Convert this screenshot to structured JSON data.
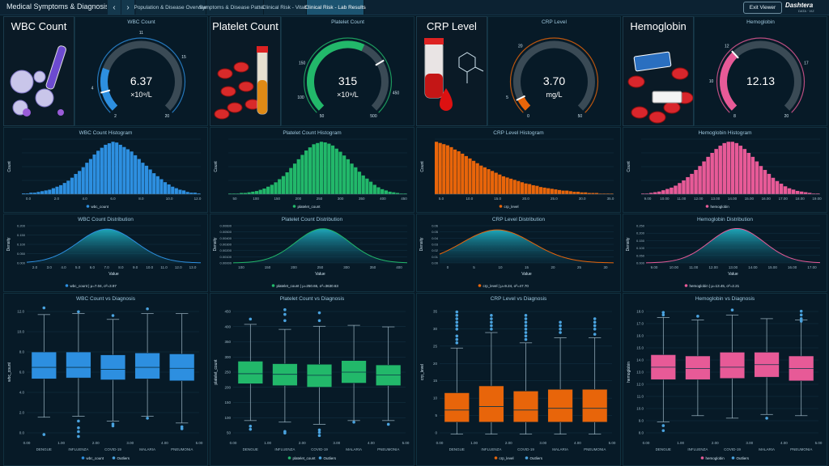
{
  "app": {
    "title": "Medical Symptoms & Diagnosis An...",
    "exit_label": "Exit Viewer",
    "logo": "Dashtera",
    "logo_sub": "DATA · VIZ"
  },
  "nav": {
    "back": "‹",
    "forward": "›"
  },
  "tabs": [
    {
      "label": "Population & Disease Overview"
    },
    {
      "label": "Symptoms & Disease Patterns"
    },
    {
      "label": "Clinical Risk - Vitals"
    },
    {
      "label": "Clinical Risk - Lab Results"
    }
  ],
  "colors": {
    "wbc": "#2d8fe0",
    "platelet": "#22b86a",
    "crp": "#e8650a",
    "hemoglobin": "#e75a97"
  },
  "metrics": [
    {
      "key": "wbc",
      "title": "WBC Count",
      "gauge_title": "WBC Count",
      "value": "6.37",
      "unit": "×10⁹/L",
      "min": "2",
      "max": "20",
      "ticks": [
        "4",
        "11",
        "15"
      ],
      "fraction": 0.24,
      "marker": 0.11,
      "hist_title": "WBC Count Histogram",
      "hist_legend": "wbc_count",
      "hist_ticks": [
        "0.0",
        "2.0",
        "4.0",
        "6.0",
        "8.0",
        "10.0",
        "12.0"
      ],
      "dist_title": "WBC Count Distribution",
      "dist_legend": "wbc_count | μ=7.04, σ²=3.97",
      "dist_ticks": [
        "2.0",
        "3.0",
        "4.0",
        "5.0",
        "6.0",
        "7.0",
        "8.0",
        "9.0",
        "10.0",
        "11.0",
        "12.0",
        "13.0"
      ],
      "dist_y": [
        "0.200",
        "0.150",
        "0.100",
        "0.050",
        "0.000"
      ],
      "box_title": "WBC Count vs Diagnosis",
      "box_ylabel": "wbc_count",
      "box_legend": "wbc_count",
      "box_y": [
        "12.0",
        "10.0",
        "8.0",
        "6.0",
        "4.0",
        "2.0",
        "0.0"
      ]
    },
    {
      "key": "platelet",
      "title": "Platelet Count",
      "gauge_title": "Platelet Count",
      "value": "315",
      "unit": "×10⁹/L",
      "min": "50",
      "max": "500",
      "ticks": [
        "100",
        "150",
        "450"
      ],
      "fraction": 0.59,
      "marker": 0.72,
      "hist_title": "Platelet Count Histogram",
      "hist_legend": "platelet_count",
      "hist_ticks": [
        "50",
        "100",
        "150",
        "200",
        "250",
        "300",
        "350",
        "400",
        "450"
      ],
      "dist_title": "Platelet Count Distribution",
      "dist_legend": "platelet_count | μ=250.65, σ²=3630.63",
      "dist_ticks": [
        "100",
        "150",
        "200",
        "250",
        "300",
        "350",
        "400"
      ],
      "dist_y": [
        "0.00600",
        "0.00500",
        "0.00400",
        "0.00300",
        "0.00200",
        "0.00100",
        "0.00000"
      ],
      "box_title": "Platelet Count vs Diagnosis",
      "box_ylabel": "platelet_count",
      "box_legend": "platelet_count",
      "box_y": [
        "450",
        "400",
        "350",
        "300",
        "250",
        "200",
        "150",
        "100",
        "50"
      ]
    },
    {
      "key": "crp",
      "title": "CRP Level",
      "gauge_title": "CRP Level",
      "value": "3.70",
      "unit": "mg/L",
      "min": "0",
      "max": "50",
      "ticks": [
        "5",
        "20"
      ],
      "fraction": 0.07,
      "marker": 0.07,
      "hist_title": "CRP Level Histogram",
      "hist_legend": "crp_level",
      "hist_ticks": [
        "5.0",
        "10.0",
        "15.0",
        "20.0",
        "25.0",
        "30.0",
        "35.0"
      ],
      "dist_title": "CRP Level Distribution",
      "dist_legend": "crp_level | μ=9.24, σ²=47.70",
      "dist_ticks": [
        "0",
        "5",
        "10",
        "15",
        "20",
        "25",
        "30"
      ],
      "dist_y": [
        "0.06",
        "0.05",
        "0.04",
        "0.03",
        "0.02",
        "0.01",
        "0.00"
      ],
      "box_title": "CRP Level vs Diagnosis",
      "box_ylabel": "crp_level",
      "box_legend": "crp_level",
      "box_y": [
        "35",
        "30",
        "25",
        "20",
        "15",
        "10",
        "5",
        "0"
      ]
    },
    {
      "key": "hemoglobin",
      "title": "Hemoglobin",
      "gauge_title": "Hemoglobin",
      "value": "12.13",
      "unit": "",
      "min": "8",
      "max": "20",
      "ticks": [
        "10",
        "12",
        "17"
      ],
      "fraction": 0.34,
      "marker": 0.34,
      "hist_title": "Hemoglobin Histogram",
      "hist_legend": "hemoglobin",
      "hist_ticks": [
        "9.00",
        "10.00",
        "11.00",
        "12.00",
        "13.00",
        "14.00",
        "15.00",
        "16.00",
        "17.00",
        "18.00",
        "19.00"
      ],
      "dist_title": "Hemoglobin Distribution",
      "dist_legend": "hemoglobin | μ=13.45, σ²=2.21",
      "dist_ticks": [
        "9.00",
        "10.00",
        "11.00",
        "12.00",
        "13.00",
        "14.00",
        "15.00",
        "16.00",
        "17.00"
      ],
      "dist_y": [
        "0.250",
        "0.200",
        "0.150",
        "0.100",
        "0.050",
        "0.000"
      ],
      "box_title": "Hemoglobin vs Diagnosis",
      "box_ylabel": "hemoglobin",
      "box_legend": "hemoglobin",
      "box_y": [
        "18.0",
        "17.0",
        "16.0",
        "15.0",
        "14.0",
        "13.0",
        "12.0",
        "11.0",
        "10.0",
        "9.0",
        "8.0"
      ]
    }
  ],
  "diagnoses": [
    "DENGUE",
    "INFLUENZA",
    "COVID-19",
    "MALARIA",
    "PNEUMONIA"
  ],
  "box_x_ticks": [
    "0.00",
    "1.00",
    "2.00",
    "3.00",
    "4.00",
    "5.00"
  ],
  "labels": {
    "count": "Count",
    "density": "Density",
    "value": "Value",
    "outliers": "Outliers"
  },
  "chart_data": [
    {
      "type": "bar",
      "title": "WBC Count Histogram",
      "xlabel": "",
      "ylabel": "Count",
      "x_range": [
        0,
        13
      ],
      "values": [
        1,
        1,
        2,
        2,
        3,
        4,
        5,
        6,
        8,
        10,
        12,
        15,
        18,
        22,
        27,
        31,
        36,
        42,
        47,
        53,
        58,
        62,
        66,
        68,
        70,
        69,
        66,
        63,
        60,
        57,
        52,
        47,
        42,
        38,
        33,
        28,
        24,
        20,
        16,
        13,
        10,
        8,
        6,
        5,
        3,
        2,
        2,
        1
      ]
    },
    {
      "type": "bar",
      "title": "Platelet Count Histogram",
      "xlabel": "",
      "ylabel": "Count",
      "x_range": [
        50,
        460
      ],
      "values": [
        1,
        1,
        1,
        2,
        2,
        3,
        4,
        5,
        7,
        9,
        12,
        15,
        19,
        24,
        29,
        35,
        42,
        49,
        56,
        63,
        70,
        75,
        80,
        82,
        84,
        83,
        81,
        78,
        73,
        68,
        62,
        56,
        49,
        43,
        36,
        30,
        25,
        20,
        15,
        11,
        8,
        6,
        4,
        3,
        2,
        1,
        1
      ]
    },
    {
      "type": "bar",
      "title": "CRP Level Histogram",
      "xlabel": "",
      "ylabel": "Count",
      "x_range": [
        0,
        38
      ],
      "values": [
        88,
        86,
        84,
        82,
        79,
        75,
        72,
        68,
        64,
        60,
        56,
        52,
        48,
        45,
        42,
        39,
        36,
        33,
        30,
        28,
        26,
        24,
        22,
        20,
        18,
        17,
        15,
        14,
        12,
        11,
        10,
        9,
        8,
        7,
        6,
        6,
        5,
        4,
        4,
        3,
        3,
        2,
        2,
        2,
        1,
        1,
        1,
        1
      ]
    },
    {
      "type": "bar",
      "title": "Hemoglobin Histogram",
      "xlabel": "",
      "ylabel": "Count",
      "x_range": [
        8.5,
        19.5
      ],
      "values": [
        1,
        1,
        2,
        3,
        4,
        6,
        8,
        10,
        13,
        17,
        21,
        26,
        31,
        37,
        43,
        50,
        57,
        63,
        69,
        74,
        78,
        80,
        80,
        78,
        74,
        69,
        63,
        57,
        50,
        43,
        37,
        31,
        25,
        20,
        16,
        12,
        9,
        7,
        5,
        4,
        3,
        2,
        1,
        1
      ]
    },
    {
      "type": "area",
      "title": "WBC Count Distribution",
      "mean": 7.04,
      "variance": 3.97,
      "x_range": [
        1.5,
        13.5
      ],
      "ylim": [
        0,
        0.22
      ]
    },
    {
      "type": "area",
      "title": "Platelet Count Distribution",
      "mean": 250.65,
      "variance": 3630.63,
      "x_range": [
        50,
        440
      ],
      "ylim": [
        0,
        0.0072
      ]
    },
    {
      "type": "area",
      "title": "CRP Level Distribution",
      "mean": 9.24,
      "variance": 47.7,
      "x_range": [
        -2,
        32
      ],
      "ylim": [
        0,
        0.065
      ]
    },
    {
      "type": "area",
      "title": "Hemoglobin Distribution",
      "mean": 13.45,
      "variance": 2.21,
      "x_range": [
        8.5,
        18
      ],
      "ylim": [
        0,
        0.29
      ]
    },
    {
      "type": "box",
      "title": "WBC Count vs Diagnosis",
      "ylim": [
        -0.5,
        13.5
      ],
      "categories": [
        "DENGUE",
        "INFLUENZA",
        "COVID-19",
        "MALARIA",
        "PNEUMONIA"
      ],
      "boxes": [
        {
          "min": 1.8,
          "q1": 5.8,
          "median": 7.0,
          "q3": 8.6,
          "max": 12.5,
          "outliers": [
            13.2,
            0.0
          ]
        },
        {
          "min": 1.9,
          "q1": 5.9,
          "median": 7.0,
          "q3": 8.6,
          "max": 12.6,
          "outliers": [
            12.8,
            1.4,
            0.7,
            0.3,
            -0.2
          ]
        },
        {
          "min": 1.4,
          "q1": 5.7,
          "median": 6.8,
          "q3": 8.3,
          "max": 12.0,
          "outliers": [
            12.4,
            1.1,
            0.9
          ]
        },
        {
          "min": 1.9,
          "q1": 5.8,
          "median": 7.0,
          "q3": 8.5,
          "max": 12.6,
          "outliers": [
            13.1,
            1.7
          ]
        },
        {
          "min": 1.2,
          "q1": 5.6,
          "median": 6.9,
          "q3": 8.4,
          "max": 12.6,
          "outliers": [
            0.8,
            0.6
          ]
        }
      ]
    },
    {
      "type": "box",
      "title": "Platelet Count vs Diagnosis",
      "ylim": [
        40,
        470
      ],
      "categories": [
        "DENGUE",
        "INFLUENZA",
        "COVID-19",
        "MALARIA",
        "PNEUMONIA"
      ],
      "boxes": [
        {
          "min": 100,
          "q1": 218,
          "median": 250,
          "q3": 290,
          "max": 408,
          "outliers": [
            425,
            82,
            72
          ]
        },
        {
          "min": 95,
          "q1": 212,
          "median": 248,
          "q3": 282,
          "max": 392,
          "outliers": [
            455,
            440,
            420,
            65,
            60
          ]
        },
        {
          "min": 88,
          "q1": 207,
          "median": 245,
          "q3": 280,
          "max": 402,
          "outliers": [
            445,
            420,
            70,
            62,
            52
          ]
        },
        {
          "min": 100,
          "q1": 220,
          "median": 255,
          "q3": 292,
          "max": 405,
          "outliers": [
            95
          ]
        },
        {
          "min": 100,
          "q1": 212,
          "median": 246,
          "q3": 278,
          "max": 400,
          "outliers": [
            88
          ]
        }
      ]
    },
    {
      "type": "box",
      "title": "CRP Level vs Diagnosis",
      "ylim": [
        -1,
        38
      ],
      "categories": [
        "DENGUE",
        "INFLUENZA",
        "COVID-19",
        "MALARIA",
        "PNEUMONIA"
      ],
      "boxes": [
        {
          "min": 0.5,
          "q1": 4.0,
          "median": 7.5,
          "q3": 12.5,
          "max": 25.5,
          "outliers": [
            27,
            28,
            29,
            31,
            32,
            33,
            34,
            35,
            36
          ]
        },
        {
          "min": 0.5,
          "q1": 4.0,
          "median": 8.5,
          "q3": 14.5,
          "max": 30.0,
          "outliers": [
            31,
            32,
            33,
            34,
            35
          ]
        },
        {
          "min": 0.5,
          "q1": 4.0,
          "median": 7.5,
          "q3": 13.0,
          "max": 27.0,
          "outliers": [
            28,
            29,
            30,
            31,
            32,
            33,
            34,
            35
          ]
        },
        {
          "min": 0.5,
          "q1": 4.0,
          "median": 8.0,
          "q3": 13.5,
          "max": 28.5,
          "outliers": [
            30,
            31,
            32,
            33
          ]
        },
        {
          "min": 0.5,
          "q1": 4.0,
          "median": 8.0,
          "q3": 13.5,
          "max": 28.5,
          "outliers": [
            29.5,
            31,
            32,
            33,
            34
          ]
        }
      ]
    },
    {
      "type": "box",
      "title": "Hemoglobin vs Diagnosis",
      "ylim": [
        7.6,
        18.4
      ],
      "categories": [
        "DENGUE",
        "INFLUENZA",
        "COVID-19",
        "MALARIA",
        "PNEUMONIA"
      ],
      "boxes": [
        {
          "min": 9.0,
          "q1": 12.4,
          "median": 13.4,
          "q3": 14.4,
          "max": 17.4,
          "outliers": [
            17.8,
            17.6,
            8.7,
            8.3
          ]
        },
        {
          "min": 9.5,
          "q1": 12.4,
          "median": 13.3,
          "q3": 14.3,
          "max": 17.2,
          "outliers": [
            17.5
          ]
        },
        {
          "min": 9.3,
          "q1": 12.5,
          "median": 13.4,
          "q3": 14.6,
          "max": 17.6,
          "outliers": [
            18.0
          ]
        },
        {
          "min": 9.6,
          "q1": 12.6,
          "median": 13.6,
          "q3": 14.6,
          "max": 17.3,
          "outliers": [
            9.3
          ]
        },
        {
          "min": 9.5,
          "q1": 12.3,
          "median": 13.3,
          "q3": 14.3,
          "max": 17.2,
          "outliers": [
            17.9,
            17.6,
            17.3,
            17.1
          ]
        }
      ]
    }
  ]
}
